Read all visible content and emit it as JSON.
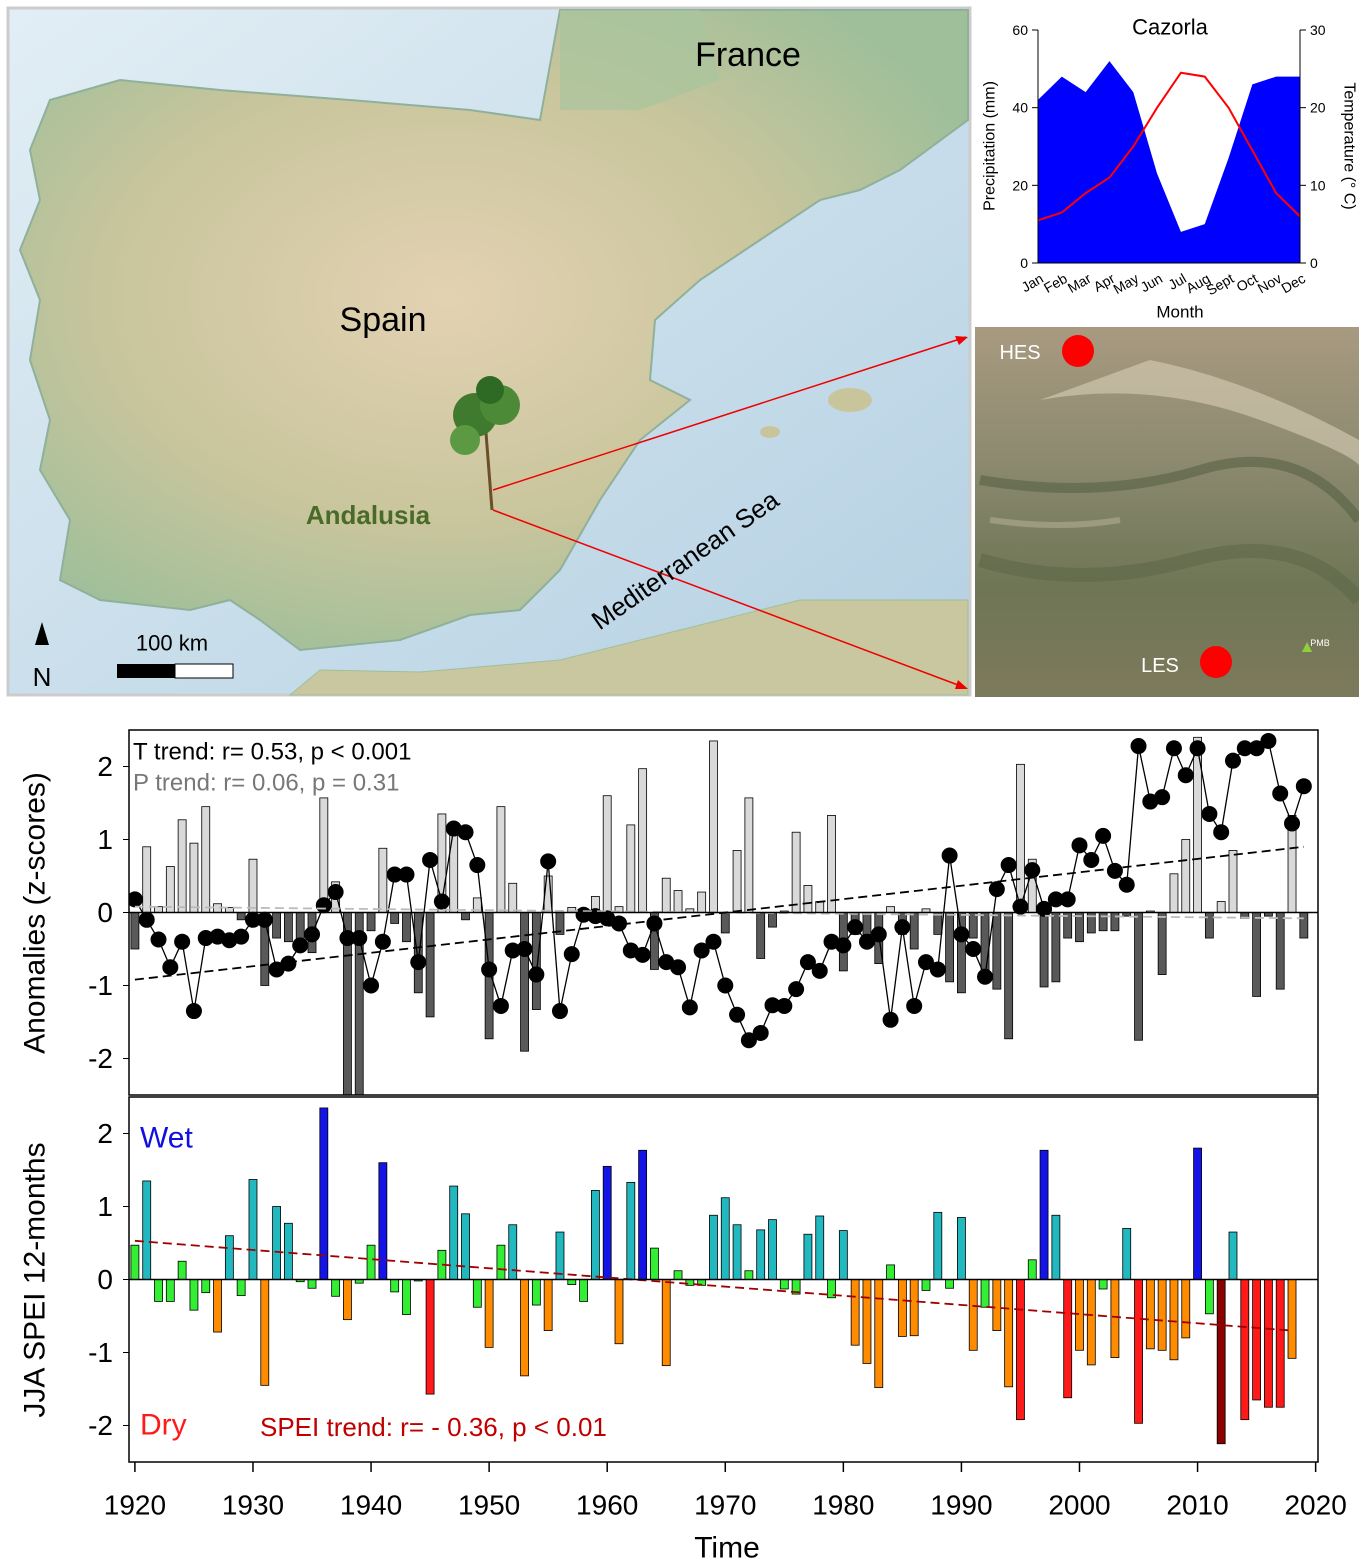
{
  "map": {
    "france": "France",
    "spain": "Spain",
    "andalusia": "Andalusia",
    "sea": "Mediterranean Sea",
    "scale_bar": "100 km",
    "north": "N"
  },
  "satellite": {
    "sites": [
      "HES",
      "LES"
    ],
    "station": "PMB"
  },
  "chart_data": [
    {
      "type": "combo",
      "title": "Cazorla",
      "x_label": "Month",
      "y_label": "Precipitation (mm)",
      "y2_label": "Temperature (° C)",
      "categories": [
        "Jan",
        "Feb",
        "Mar",
        "Apr",
        "May",
        "Jun",
        "Jul",
        "Aug",
        "Sept",
        "Oct",
        "Nov",
        "Dec"
      ],
      "ylim": [
        0,
        60
      ],
      "yticks": [
        0,
        20,
        40,
        60
      ],
      "y2lim": [
        0,
        30
      ],
      "y2ticks": [
        0,
        10,
        20,
        30
      ],
      "series": [
        {
          "type": "area",
          "color": "#0000ff",
          "values": [
            42,
            48,
            44,
            52,
            44,
            23,
            8,
            10,
            27,
            46,
            48,
            48
          ]
        },
        {
          "type": "line",
          "color": "#ff0000",
          "axis": "y2",
          "values": [
            5.5,
            6.5,
            9,
            11,
            15,
            20,
            24.5,
            24,
            20,
            14.5,
            9,
            6
          ]
        }
      ]
    },
    {
      "type": "combo",
      "y_label": "Anomalies (z-scores)",
      "annotations": [
        {
          "text": "T trend: r= 0.53, p < 0.001",
          "color": "#000000"
        },
        {
          "text": "P trend: r= 0.06, p = 0.31",
          "color": "#777777"
        }
      ],
      "x": [
        1920,
        1921,
        1922,
        1923,
        1924,
        1925,
        1926,
        1927,
        1928,
        1929,
        1930,
        1931,
        1932,
        1933,
        1934,
        1935,
        1936,
        1937,
        1938,
        1939,
        1940,
        1941,
        1942,
        1943,
        1944,
        1945,
        1946,
        1947,
        1948,
        1949,
        1950,
        1951,
        1952,
        1953,
        1954,
        1955,
        1956,
        1957,
        1958,
        1959,
        1960,
        1961,
        1962,
        1963,
        1964,
        1965,
        1966,
        1967,
        1968,
        1969,
        1970,
        1971,
        1972,
        1973,
        1974,
        1975,
        1976,
        1977,
        1978,
        1979,
        1980,
        1981,
        1982,
        1983,
        1984,
        1985,
        1986,
        1987,
        1988,
        1989,
        1990,
        1991,
        1992,
        1993,
        1994,
        1995,
        1996,
        1997,
        1998,
        1999,
        2000,
        2001,
        2002,
        2003,
        2004,
        2005,
        2006,
        2007,
        2008,
        2009,
        2010,
        2011,
        2012,
        2013,
        2014,
        2015,
        2016,
        2017,
        2018,
        2019
      ],
      "xlim": [
        1919.5,
        2020.2
      ],
      "ylim": [
        -2.5,
        2.5
      ],
      "yticks": [
        -2,
        -1,
        0,
        1,
        2
      ],
      "series": [
        {
          "type": "bar",
          "color_classes": [
            {
              "min": 0,
              "color": "#d9d9d9"
            },
            {
              "color": "#595959"
            }
          ],
          "values": [
            -0.5,
            0.9,
            0.08,
            0.63,
            1.27,
            0.95,
            1.45,
            0.12,
            0.07,
            -0.1,
            0.73,
            -1.0,
            -0.35,
            -0.4,
            -0.45,
            -0.55,
            1.57,
            0.42,
            -2.5,
            -2.5,
            -0.25,
            0.88,
            -0.15,
            -0.4,
            -1.1,
            -1.43,
            1.35,
            1.1,
            -0.1,
            0.2,
            -1.73,
            1.45,
            0.4,
            -1.9,
            -1.33,
            0.5,
            -0.3,
            0.07,
            0.05,
            0.22,
            1.6,
            0.08,
            1.2,
            1.97,
            -0.78,
            0.47,
            0.3,
            0.05,
            0.28,
            2.35,
            -0.28,
            0.85,
            1.57,
            -0.63,
            -0.2,
            0.02,
            1.1,
            0.37,
            0.15,
            1.33,
            -0.8,
            -0.3,
            -0.3,
            -0.7,
            0.08,
            -0.3,
            -0.5,
            0.05,
            -0.3,
            -0.95,
            -1.1,
            -0.35,
            -0.8,
            -1.05,
            -1.73,
            2.03,
            0.73,
            -1.02,
            -0.95,
            -0.35,
            -0.4,
            -0.28,
            -0.25,
            -0.25,
            -0.05,
            -1.75,
            0.02,
            -0.85,
            0.53,
            1.0,
            2.4,
            -0.35,
            0.15,
            0.85,
            -0.08,
            -1.15,
            -0.05,
            -1.05,
            1.33,
            -0.35
          ]
        },
        {
          "type": "line",
          "color": "#000000",
          "marker": true,
          "values": [
            0.18,
            -0.1,
            -0.37,
            -0.75,
            -0.4,
            -1.35,
            -0.35,
            -0.33,
            -0.38,
            -0.33,
            -0.1,
            -0.1,
            -0.78,
            -0.7,
            -0.45,
            -0.3,
            0.1,
            0.28,
            -0.35,
            -0.35,
            -1.0,
            -0.4,
            0.52,
            0.52,
            -0.68,
            0.72,
            0.15,
            1.15,
            1.1,
            0.65,
            -0.78,
            -1.28,
            -0.52,
            -0.5,
            -0.85,
            0.7,
            -1.35,
            -0.57,
            -0.03,
            -0.05,
            -0.08,
            -0.15,
            -0.52,
            -0.58,
            -0.15,
            -0.68,
            -0.75,
            -1.3,
            -0.52,
            -0.4,
            -1.0,
            -1.4,
            -1.75,
            -1.65,
            -1.27,
            -1.28,
            -1.05,
            -0.68,
            -0.8,
            -0.4,
            -0.45,
            -0.2,
            -0.4,
            -0.3,
            -1.47,
            -0.2,
            -1.28,
            -0.68,
            -0.78,
            0.78,
            -0.3,
            -0.5,
            -0.88,
            0.32,
            0.65,
            0.08,
            0.58,
            0.05,
            0.18,
            0.18,
            0.92,
            0.72,
            1.05,
            0.57,
            0.38,
            2.28,
            1.52,
            1.58,
            2.25,
            1.88,
            2.25,
            1.35,
            1.1,
            2.08,
            2.25,
            2.25,
            2.35,
            1.63,
            1.22,
            1.73
          ]
        }
      ],
      "trend_lines": [
        {
          "x": [
            1920,
            2019
          ],
          "values": [
            0.08,
            -0.08
          ],
          "color": "#bbbbbb"
        },
        {
          "x": [
            1920,
            2019
          ],
          "values": [
            -0.92,
            0.9
          ],
          "color": "#000000"
        }
      ]
    },
    {
      "type": "combo",
      "y_label": "JJA SPEI 12-months",
      "x_label": "Time",
      "annotations": [
        {
          "text": "Wet",
          "color": "#1010e0"
        },
        {
          "text": "Dry",
          "color": "#ff1a1a"
        },
        {
          "text": "SPEI trend: r= - 0.36, p < 0.01",
          "color": "#c00000"
        }
      ],
      "x": [
        1920,
        1921,
        1922,
        1923,
        1924,
        1925,
        1926,
        1927,
        1928,
        1929,
        1930,
        1931,
        1932,
        1933,
        1934,
        1935,
        1936,
        1937,
        1938,
        1939,
        1940,
        1941,
        1942,
        1943,
        1944,
        1945,
        1946,
        1947,
        1948,
        1949,
        1950,
        1951,
        1952,
        1953,
        1954,
        1955,
        1956,
        1957,
        1958,
        1959,
        1960,
        1961,
        1962,
        1963,
        1964,
        1965,
        1966,
        1967,
        1968,
        1969,
        1970,
        1971,
        1972,
        1973,
        1974,
        1975,
        1976,
        1977,
        1978,
        1979,
        1980,
        1981,
        1982,
        1983,
        1984,
        1985,
        1986,
        1987,
        1988,
        1989,
        1990,
        1991,
        1992,
        1993,
        1994,
        1995,
        1996,
        1997,
        1998,
        1999,
        2000,
        2001,
        2002,
        2003,
        2004,
        2005,
        2006,
        2007,
        2008,
        2009,
        2010,
        2011,
        2012,
        2013,
        2014,
        2015,
        2016,
        2017,
        2018
      ],
      "xlim": [
        1919.5,
        2020.2
      ],
      "ylim": [
        -2.5,
        2.5
      ],
      "yticks": [
        -2,
        -1,
        0,
        1,
        2
      ],
      "xticks": [
        1920,
        1930,
        1940,
        1950,
        1960,
        1970,
        1980,
        1990,
        2000,
        2010,
        2020
      ],
      "series": [
        {
          "type": "bar",
          "color_classes": [
            {
              "min": 1.5,
              "color": "#1414e6"
            },
            {
              "min": 0.5,
              "color": "#22b8c0"
            },
            {
              "min": -0.5,
              "color": "#33ee33"
            },
            {
              "min": -1.5,
              "color": "#ff8c00"
            },
            {
              "min": -2,
              "color": "#ff1a1a"
            },
            {
              "color": "#8b0000"
            }
          ],
          "values": [
            0.47,
            1.35,
            -0.3,
            -0.3,
            0.25,
            -0.42,
            -0.18,
            -0.72,
            0.6,
            -0.22,
            1.37,
            -1.45,
            1.0,
            0.77,
            -0.03,
            -0.12,
            2.35,
            -0.23,
            -0.55,
            -0.05,
            0.47,
            1.6,
            -0.17,
            -0.48,
            -0.02,
            -1.57,
            0.4,
            1.28,
            0.9,
            -0.38,
            -0.93,
            0.47,
            0.75,
            -1.32,
            -0.35,
            -0.7,
            0.65,
            -0.07,
            -0.3,
            1.22,
            1.55,
            -0.88,
            1.33,
            1.77,
            0.43,
            -1.18,
            0.12,
            -0.08,
            -0.08,
            0.88,
            1.12,
            0.75,
            0.12,
            0.68,
            0.82,
            -0.13,
            -0.2,
            0.62,
            0.87,
            -0.25,
            0.67,
            -0.9,
            -1.15,
            -1.48,
            0.2,
            -0.78,
            -0.77,
            -0.15,
            0.92,
            -0.12,
            0.85,
            -0.97,
            -0.38,
            -0.7,
            -1.47,
            -1.92,
            0.27,
            1.77,
            0.88,
            -1.62,
            -0.97,
            -1.17,
            -0.13,
            -1.07,
            0.7,
            -1.97,
            -0.95,
            -0.97,
            -1.1,
            -0.8,
            1.8,
            -0.47,
            -2.25,
            0.65,
            -1.92,
            -1.65,
            -1.75,
            -1.75,
            -1.08
          ]
        }
      ],
      "trend_lines": [
        {
          "x": [
            1920,
            2018
          ],
          "values": [
            0.53,
            -0.7
          ],
          "color": "#a00000"
        }
      ]
    }
  ]
}
